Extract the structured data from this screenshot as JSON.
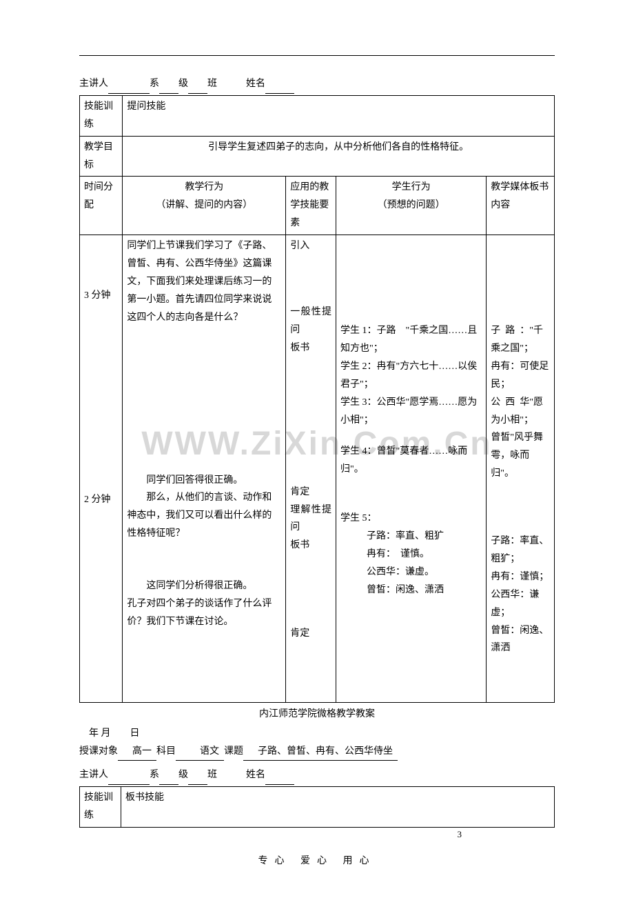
{
  "watermark": "WWW.ZiXin.Com.Cn",
  "info1": {
    "label_presenter": "主讲人",
    "dept_suffix": "系",
    "grade_suffix": "级",
    "class_suffix": "班",
    "name_label": "姓名"
  },
  "table1": {
    "r1c1": "技能训练",
    "r1c2": "提问技能",
    "r2c1": "教学目标",
    "r2c2": "引导学生复述四弟子的志向，从中分析他们各自的性格特征。",
    "r3c1": "时间分配",
    "r3c2a": "教学行为",
    "r3c2b": "（讲解、提问的内容）",
    "r3c3": "应用的教学技能要素",
    "r3c4a": "学生行为",
    "r3c4b": "（预想的问题）",
    "r3c5": "教学媒体板书内容",
    "time1": "3 分钟",
    "behave1": "同学们上节课我们学习了《子路、曾皙、冉有、公西华侍坐》这篇课文，下面我们来处理课后练习一的第一小题。首先请四位同学来说说这四个人的志向各是什么？",
    "tech1a": "引入",
    "tech1b": "一般性提问",
    "tech1c": "板书",
    "stu1": "学生 1：子路　\"千乘之国……且知方也\"；",
    "stu2": "学生 2：冉有\"方六七十……以俟君子\"；",
    "stu3": "学生 3：公西华\"愿学焉……愿为小相\"；",
    "stu4": "学生 4：曾皙\"莫春者……咏而归\"。",
    "board1": "子路：\"千乘之国\"；",
    "board2": "冉有：可使足民；",
    "board3": "公西华\"愿为小相\"；",
    "board4": "曾皙\"风乎舞雩，咏而归\"。",
    "time2": "2 分钟",
    "behave2a": "同学们回答得很正确。",
    "behave2b": "那么，从他们的言谈、动作和神态中，我们又可以看出什么样的性格特征呢？",
    "behave2c": "这同学们分析得很正确。",
    "behave2d": "孔子对四个弟子的谈话作了什么评价？我们下节课在讨论。",
    "tech2a": "肯定",
    "tech2b": "理解性提问",
    "tech2c": "板书",
    "tech2d": "肯定",
    "stu5h": "学生 5：",
    "stu5a": "子路：率直、粗犷",
    "stu5b": "冉有：　谨慎。",
    "stu5c": "公西华：谦虚。",
    "stu5d": "曾皙：闲逸、潇洒",
    "board5": "子路：率直、粗犷；",
    "board6": "冉有：谨慎；",
    "board7": "公西华：谦虚；",
    "board8": "曾皙：闲逸、潇洒"
  },
  "mid_title": "内江师范学院微格教学教案",
  "date_line": "　年 月　　日",
  "info2": {
    "label_audience": "授课对象",
    "audience": "高一",
    "label_subject": "科目",
    "subject": "语文",
    "label_topic": "课题",
    "topic": "子路、曾皙、冉有、公西华侍坐"
  },
  "table2": {
    "r1c1": "技能训练",
    "r1c2": "板书技能"
  },
  "footer": "专心  爱心  用心",
  "page_num": "3"
}
